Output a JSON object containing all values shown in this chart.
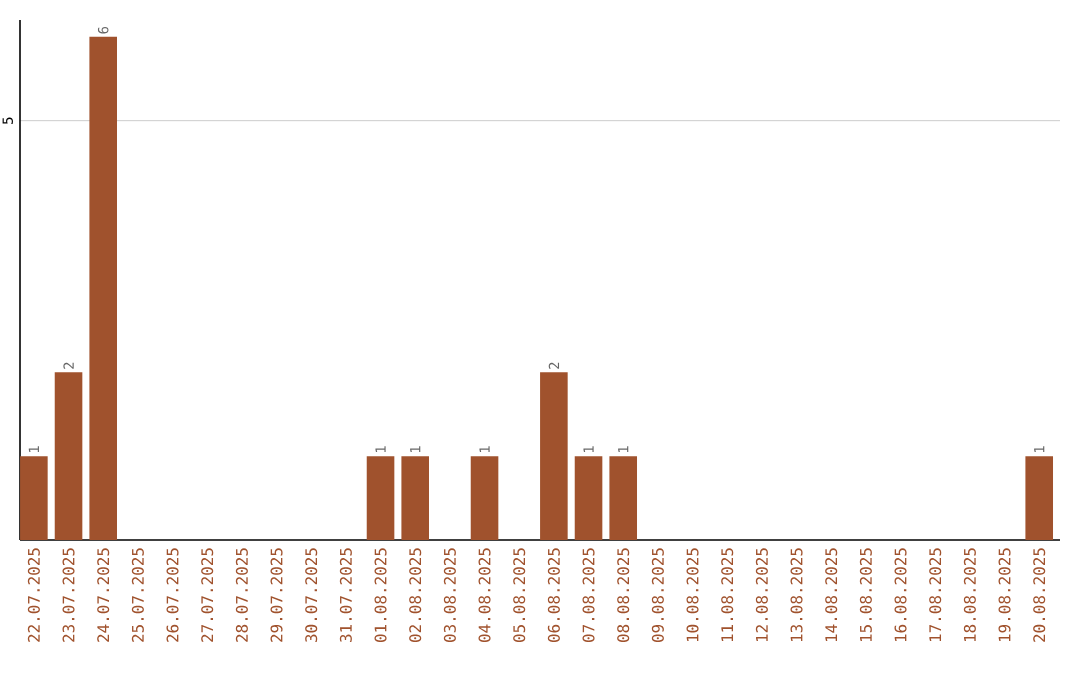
{
  "chart_data": {
    "type": "bar",
    "categories": [
      "22.07.2025",
      "23.07.2025",
      "24.07.2025",
      "25.07.2025",
      "26.07.2025",
      "27.07.2025",
      "28.07.2025",
      "29.07.2025",
      "30.07.2025",
      "31.07.2025",
      "01.08.2025",
      "02.08.2025",
      "03.08.2025",
      "04.08.2025",
      "05.08.2025",
      "06.08.2025",
      "07.08.2025",
      "08.08.2025",
      "09.08.2025",
      "10.08.2025",
      "11.08.2025",
      "12.08.2025",
      "13.08.2025",
      "14.08.2025",
      "15.08.2025",
      "16.08.2025",
      "17.08.2025",
      "18.08.2025",
      "19.08.2025",
      "20.08.2025"
    ],
    "values": [
      1,
      2,
      6,
      0,
      0,
      0,
      0,
      0,
      0,
      0,
      1,
      1,
      0,
      1,
      0,
      2,
      1,
      1,
      0,
      0,
      0,
      0,
      0,
      0,
      0,
      0,
      0,
      0,
      0,
      1
    ],
    "value_labels": [
      "1",
      "2",
      "6",
      null,
      null,
      null,
      null,
      null,
      null,
      null,
      "1",
      "1",
      null,
      "1",
      null,
      "2",
      "1",
      "1",
      null,
      null,
      null,
      null,
      null,
      null,
      null,
      null,
      null,
      null,
      null,
      "1"
    ],
    "color": "#a0522d",
    "ylim": [
      0,
      6.2
    ],
    "yticks": [
      5
    ],
    "grid": "y"
  }
}
